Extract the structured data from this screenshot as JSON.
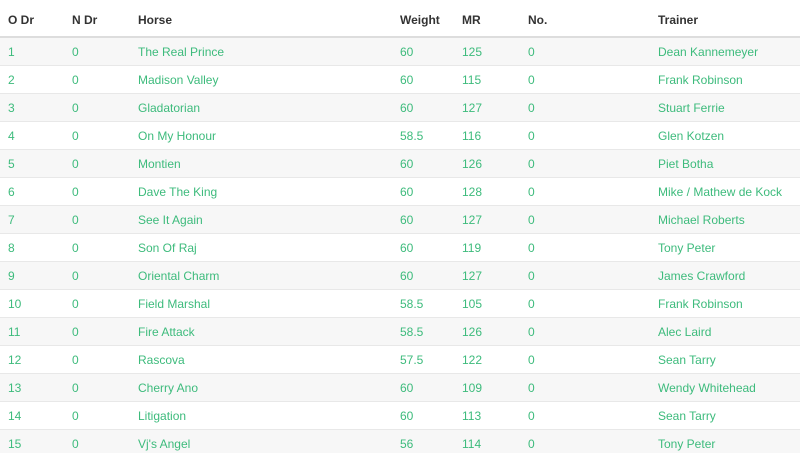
{
  "colors": {
    "accent_green": "#3dbb7c",
    "header_text": "#333333",
    "stripe_row": "#f7f7f7",
    "row_border": "#e8e8e8",
    "header_border": "#dddddd"
  },
  "table": {
    "columns": [
      "O Dr",
      "N Dr",
      "Horse",
      "Weight",
      "MR",
      "No.",
      "Trainer"
    ],
    "field_order": [
      "o_dr",
      "n_dr",
      "horse",
      "weight",
      "mr",
      "no",
      "trainer"
    ],
    "rows": [
      {
        "o_dr": "1",
        "n_dr": "0",
        "horse": "The Real Prince",
        "weight": "60",
        "mr": "125",
        "no": "0",
        "trainer": "Dean Kannemeyer"
      },
      {
        "o_dr": "2",
        "n_dr": "0",
        "horse": "Madison Valley",
        "weight": "60",
        "mr": "115",
        "no": "0",
        "trainer": "Frank Robinson"
      },
      {
        "o_dr": "3",
        "n_dr": "0",
        "horse": "Gladatorian",
        "weight": "60",
        "mr": "127",
        "no": "0",
        "trainer": "Stuart Ferrie"
      },
      {
        "o_dr": "4",
        "n_dr": "0",
        "horse": "On My Honour",
        "weight": "58.5",
        "mr": "116",
        "no": "0",
        "trainer": "Glen Kotzen"
      },
      {
        "o_dr": "5",
        "n_dr": "0",
        "horse": "Montien",
        "weight": "60",
        "mr": "126",
        "no": "0",
        "trainer": "Piet Botha"
      },
      {
        "o_dr": "6",
        "n_dr": "0",
        "horse": "Dave The King",
        "weight": "60",
        "mr": "128",
        "no": "0",
        "trainer": "Mike / Mathew de Kock"
      },
      {
        "o_dr": "7",
        "n_dr": "0",
        "horse": "See It Again",
        "weight": "60",
        "mr": "127",
        "no": "0",
        "trainer": "Michael Roberts"
      },
      {
        "o_dr": "8",
        "n_dr": "0",
        "horse": "Son Of Raj",
        "weight": "60",
        "mr": "119",
        "no": "0",
        "trainer": "Tony Peter"
      },
      {
        "o_dr": "9",
        "n_dr": "0",
        "horse": "Oriental Charm",
        "weight": "60",
        "mr": "127",
        "no": "0",
        "trainer": "James Crawford"
      },
      {
        "o_dr": "10",
        "n_dr": "0",
        "horse": "Field Marshal",
        "weight": "58.5",
        "mr": "105",
        "no": "0",
        "trainer": "Frank Robinson"
      },
      {
        "o_dr": "11",
        "n_dr": "0",
        "horse": "Fire Attack",
        "weight": "58.5",
        "mr": "126",
        "no": "0",
        "trainer": "Alec Laird"
      },
      {
        "o_dr": "12",
        "n_dr": "0",
        "horse": "Rascova",
        "weight": "57.5",
        "mr": "122",
        "no": "0",
        "trainer": "Sean Tarry"
      },
      {
        "o_dr": "13",
        "n_dr": "0",
        "horse": "Cherry Ano",
        "weight": "60",
        "mr": "109",
        "no": "0",
        "trainer": "Wendy Whitehead"
      },
      {
        "o_dr": "14",
        "n_dr": "0",
        "horse": "Litigation",
        "weight": "60",
        "mr": "113",
        "no": "0",
        "trainer": "Sean Tarry"
      },
      {
        "o_dr": "15",
        "n_dr": "0",
        "horse": "Vj's Angel",
        "weight": "56",
        "mr": "114",
        "no": "0",
        "trainer": "Tony Peter"
      }
    ]
  }
}
